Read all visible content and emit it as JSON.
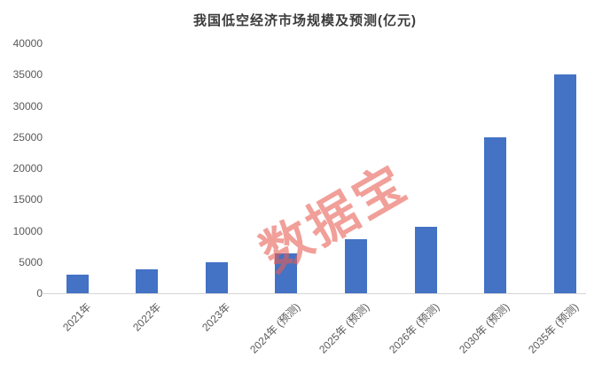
{
  "title": "我国低空经济市场规模及预测(亿元)",
  "watermark": "数据宝",
  "colors": {
    "bar": "#4472c4",
    "title": "#3b3b3b",
    "axis_label": "#595959",
    "axis_line": "#d6d6d6",
    "watermark": "rgba(232,95,85,0.60)",
    "background": "#ffffff"
  },
  "chart_data": {
    "type": "bar",
    "title": "我国低空经济市场规模及预测(亿元)",
    "categories": [
      "2021年",
      "2022年",
      "2023年",
      "2024年 (预测)",
      "2025年 (预测)",
      "2026年 (预测)",
      "2030年 (预测)",
      "2035年 (预测)"
    ],
    "values": [
      3000,
      3800,
      5000,
      6400,
      8600,
      10600,
      25000,
      35000
    ],
    "xlabel": "",
    "ylabel": "",
    "ylim": [
      0,
      40000
    ],
    "yticks": [
      0,
      5000,
      10000,
      15000,
      20000,
      25000,
      30000,
      35000,
      40000
    ],
    "grid": false,
    "legend": null,
    "x_tick_rotation": -45,
    "bar_color": "#4472c4"
  }
}
